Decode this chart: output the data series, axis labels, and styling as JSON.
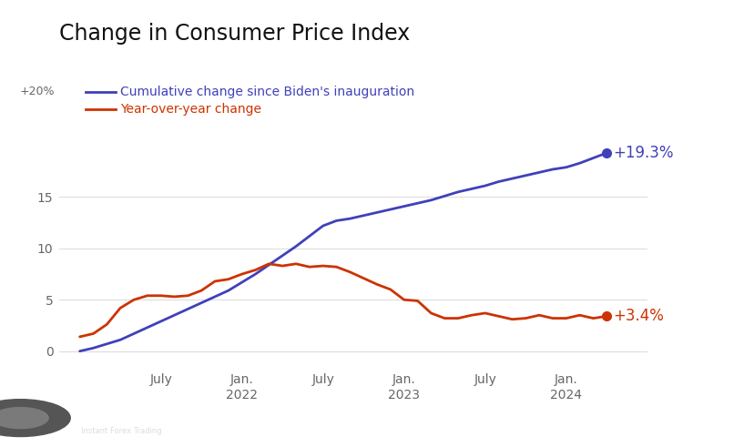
{
  "title": "Change in Consumer Price Index",
  "legend_cumulative": "Cumulative change since Biden's inauguration",
  "legend_yoy": "Year-over-year change",
  "label_20pct": "+20%",
  "annotation_cumulative": "+19.3%",
  "annotation_yoy": "+3.4%",
  "cumulative_color": "#4040bb",
  "yoy_color": "#cc3300",
  "background_color": "#ffffff",
  "grid_color": "#dddddd",
  "text_color": "#666666",
  "yticks": [
    0,
    5,
    10,
    15
  ],
  "ylim": [
    -1.5,
    22
  ],
  "xlim": [
    -1.5,
    42
  ],
  "cumulative_data": {
    "months": [
      0,
      1,
      2,
      3,
      4,
      5,
      6,
      7,
      8,
      9,
      10,
      11,
      12,
      13,
      14,
      15,
      16,
      17,
      18,
      19,
      20,
      21,
      22,
      23,
      24,
      25,
      26,
      27,
      28,
      29,
      30,
      31,
      32,
      33,
      34,
      35,
      36,
      37,
      38,
      39
    ],
    "values": [
      0.0,
      0.3,
      0.7,
      1.1,
      1.7,
      2.3,
      2.9,
      3.5,
      4.1,
      4.7,
      5.3,
      5.9,
      6.7,
      7.5,
      8.4,
      9.3,
      10.2,
      11.2,
      12.2,
      12.7,
      12.9,
      13.2,
      13.5,
      13.8,
      14.1,
      14.4,
      14.7,
      15.1,
      15.5,
      15.8,
      16.1,
      16.5,
      16.8,
      17.1,
      17.4,
      17.7,
      17.9,
      18.3,
      18.8,
      19.3
    ]
  },
  "yoy_data": {
    "months": [
      0,
      1,
      2,
      3,
      4,
      5,
      6,
      7,
      8,
      9,
      10,
      11,
      12,
      13,
      14,
      15,
      16,
      17,
      18,
      19,
      20,
      21,
      22,
      23,
      24,
      25,
      26,
      27,
      28,
      29,
      30,
      31,
      32,
      33,
      34,
      35,
      36,
      37,
      38,
      39
    ],
    "values": [
      1.4,
      1.7,
      2.6,
      4.2,
      5.0,
      5.4,
      5.4,
      5.3,
      5.4,
      5.9,
      6.8,
      7.0,
      7.5,
      7.9,
      8.5,
      8.3,
      8.5,
      8.2,
      8.3,
      8.2,
      7.7,
      7.1,
      6.5,
      6.0,
      5.0,
      4.9,
      3.7,
      3.2,
      3.2,
      3.5,
      3.7,
      3.4,
      3.1,
      3.2,
      3.5,
      3.2,
      3.2,
      3.5,
      3.2,
      3.4
    ]
  },
  "xtick_positions": [
    6,
    12,
    18,
    24,
    30,
    36
  ],
  "xtick_labels": [
    "July",
    "Jan.\n2022",
    "July",
    "Jan.\n2023",
    "July",
    "Jan.\n2024"
  ],
  "title_fontsize": 17,
  "tick_fontsize": 10,
  "legend_fontsize": 10,
  "annotation_fontsize": 12
}
